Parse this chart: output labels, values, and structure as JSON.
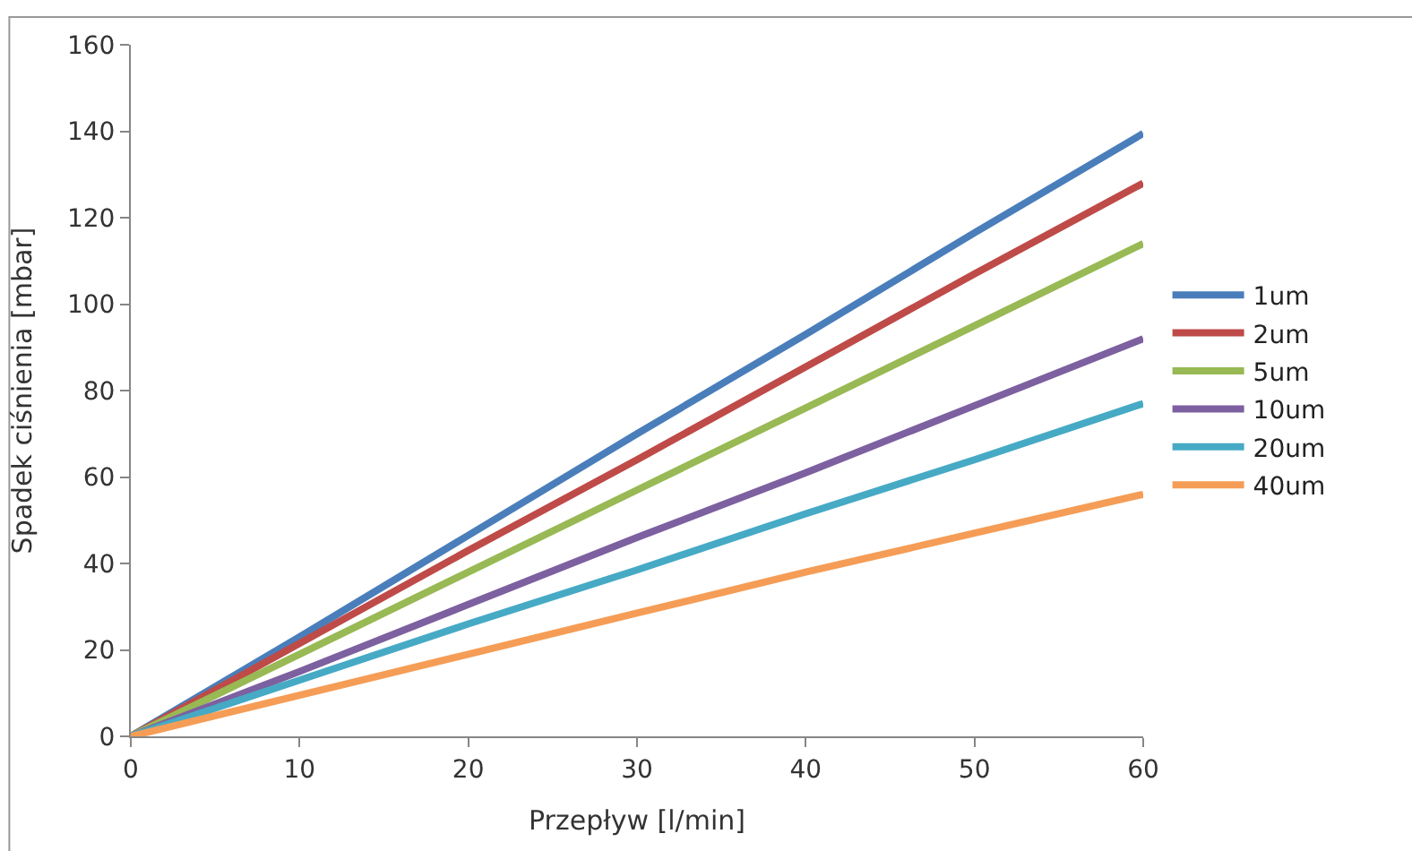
{
  "chart_data": {
    "type": "line",
    "xlabel": "Przepływ [l/min]",
    "ylabel": "Spadek ciśnienia [mbar]",
    "x": [
      0,
      10,
      20,
      30,
      40,
      50,
      60
    ],
    "series": [
      {
        "name": "1um",
        "color": "#4a7ebb",
        "values": [
          0,
          23,
          46.5,
          70,
          93,
          116.5,
          139.5
        ]
      },
      {
        "name": "2um",
        "color": "#be4b48",
        "values": [
          0,
          21.5,
          43,
          64,
          85.5,
          107,
          128
        ]
      },
      {
        "name": "5um",
        "color": "#98b954",
        "values": [
          0,
          19,
          38,
          57,
          76,
          95,
          114
        ]
      },
      {
        "name": "10um",
        "color": "#7d60a0",
        "values": [
          0,
          15,
          30.5,
          46,
          61,
          76.5,
          92
        ]
      },
      {
        "name": "20um",
        "color": "#46aac5",
        "values": [
          0,
          13,
          26,
          38.5,
          51.5,
          64,
          77
        ]
      },
      {
        "name": "40um",
        "color": "#f59d56",
        "values": [
          0,
          9.5,
          19,
          28.5,
          38,
          47,
          56
        ]
      }
    ],
    "xlim": [
      0,
      60
    ],
    "xticks": [
      0,
      10,
      20,
      30,
      40,
      50,
      60
    ],
    "ylim": [
      0,
      160
    ],
    "yticks": [
      0,
      20,
      40,
      60,
      80,
      100,
      120,
      140,
      160
    ],
    "legend": "right",
    "marker": "none",
    "line_style": "solid"
  }
}
